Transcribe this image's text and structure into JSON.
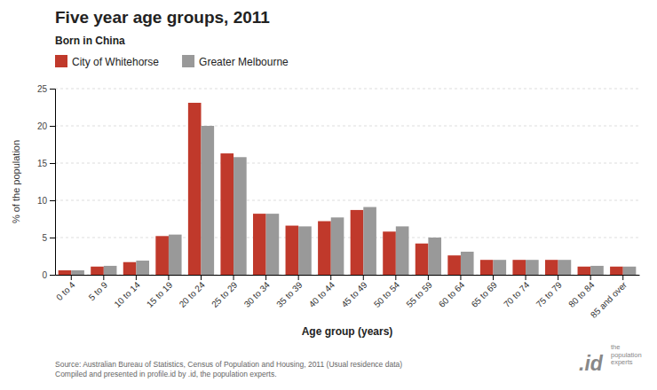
{
  "chart_data": {
    "type": "bar",
    "title": "Five year age groups, 2011",
    "subtitle": "Born in China",
    "xlabel": "Age group (years)",
    "ylabel": "% of the population",
    "source": "Source: Australian Bureau of Statistics, Census of Population and Housing, 2011 (Usual residence data)\nCompiled and presented in profile.id by .id, the population experts.",
    "annotations": [
      ".id",
      "the\npopulation\nexperts"
    ],
    "categories": [
      "0 to 4",
      "5 to 9",
      "10 to 14",
      "15 to 19",
      "20 to 24",
      "25 to 29",
      "30 to 34",
      "35 to 39",
      "40 to 44",
      "45 to 49",
      "50 to 54",
      "55 to 59",
      "60 to 64",
      "65 to 69",
      "70 to 74",
      "75 to 79",
      "80 to 84",
      "85 and over"
    ],
    "series": [
      {
        "name": "City of Whitehorse",
        "color": "#c0392b",
        "values": [
          0.6,
          1.1,
          1.7,
          5.2,
          23.1,
          16.3,
          8.2,
          6.6,
          7.2,
          8.7,
          5.8,
          4.2,
          2.6,
          2.0,
          2.0,
          2.0,
          1.1,
          1.1
        ]
      },
      {
        "name": "Greater Melbourne",
        "color": "#999999",
        "values": [
          0.6,
          1.2,
          1.9,
          5.4,
          20.0,
          15.8,
          8.2,
          6.5,
          7.7,
          9.1,
          6.5,
          5.0,
          3.1,
          2.0,
          2.0,
          2.0,
          1.2,
          1.1
        ]
      }
    ],
    "ylim": [
      0,
      25
    ],
    "yticks": [
      0,
      5,
      10,
      15,
      20,
      25
    ],
    "grid": true,
    "legend": "top-left"
  }
}
